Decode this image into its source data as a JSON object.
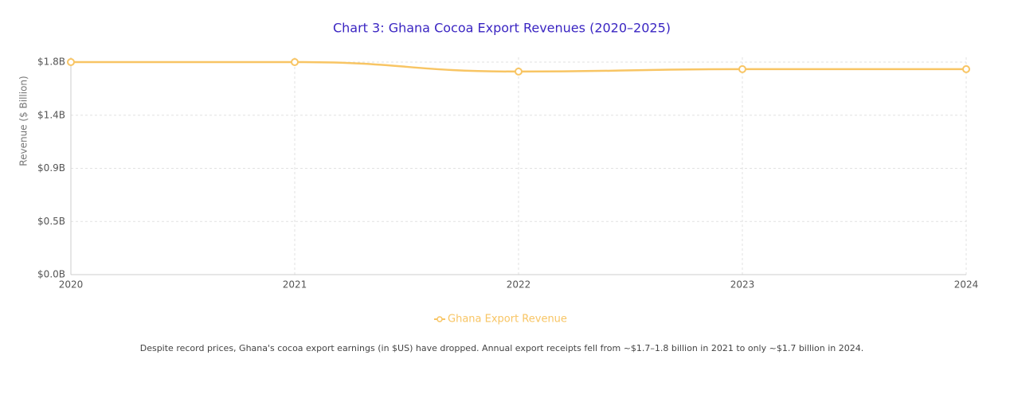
{
  "chart_data": {
    "type": "line",
    "title": "Chart 3: Ghana Cocoa Export Revenues (2020–2025)",
    "y_label": "Revenue ($ Billion)",
    "x": [
      2020,
      2021,
      2022,
      2023,
      2024
    ],
    "xlim": [
      2020,
      2024
    ],
    "xticks": [
      2020,
      2021,
      2022,
      2023,
      2024
    ],
    "ylim": [
      0,
      1.8
    ],
    "yticks": [
      {
        "value": 0,
        "label": "$0.0B"
      },
      {
        "value": 0.45,
        "label": "$0.5B"
      },
      {
        "value": 0.9,
        "label": "$0.9B"
      },
      {
        "value": 1.35,
        "label": "$1.4B"
      },
      {
        "value": 1.8,
        "label": "$1.8B"
      }
    ],
    "grid": true,
    "legend": "bottom",
    "series": [
      {
        "name": "Ghana Export Revenue",
        "color": "#f8c564",
        "values": [
          1.8,
          1.8,
          1.72,
          1.74,
          1.74
        ]
      }
    ]
  },
  "caption": "Despite record prices, Ghana's cocoa export earnings (in $US) have dropped. Annual export receipts fell from ~$1.7–1.8 billion in 2021 to only ~$1.7 billion in 2024."
}
